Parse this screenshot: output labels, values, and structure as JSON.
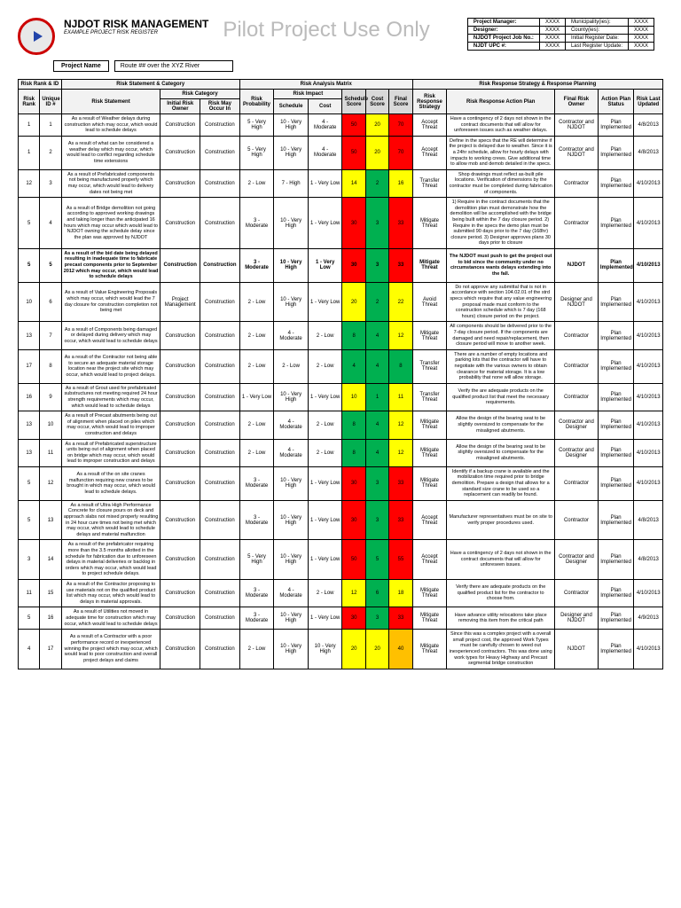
{
  "header": {
    "title": "NJDOT RISK MANAGEMENT",
    "subtitle": "EXAMPLE PROJECT RISK REGISTER",
    "watermark": "Pilot Project Use Only",
    "projectNameLabel": "Project Name",
    "projectNameValue": "Route ## over the XYZ River"
  },
  "meta": [
    [
      "Project Manager:",
      "XXXX",
      "Municipality(ies):",
      "XXXX"
    ],
    [
      "Designer:",
      "XXXX",
      "County(ies):",
      "XXXX"
    ],
    [
      "NJDOT Project Job No.:",
      "XXXX",
      "Initial Register Date:",
      "XXXX"
    ],
    [
      "NJDT UPC #:",
      "XXXX",
      "Last Register Update:",
      "XXXX"
    ]
  ],
  "groupHeaders": {
    "g1": "Risk Rank & ID",
    "g2": "Risk Statement & Category",
    "g3": "Risk Analysis Matrix",
    "g4": "Risk Response Strategy & Response Planning",
    "sub_cat": "Risk Category",
    "sub_impact": "Risk Impact"
  },
  "columns": {
    "riskRank": "Risk Rank",
    "uniqueId": "Unique ID #",
    "riskStatement": "Risk Statement",
    "initialOwner": "Initial Risk Owner",
    "mayOccur": "Risk May Occur In",
    "probability": "Risk Probability",
    "schedule": "Schedule",
    "cost": "Cost",
    "schedScore": "Schedule Score",
    "costScore": "Cost Score",
    "finalScore": "Final Score",
    "strategy": "Risk Response Strategy",
    "actionPlan": "Risk Response Action Plan",
    "finalOwner": "Final Risk Owner",
    "planStatus": "Action Plan Status",
    "lastUpdated": "Risk Last Updated"
  },
  "colors": {
    "red": "#ff0000",
    "yellow": "#ffff00",
    "green": "#00b050",
    "orange": "#ffc000"
  },
  "rows": [
    {
      "rank": "1",
      "id": "1",
      "stmt": "As a result of Weather delays during construction which may occur, which would lead to schedule delays",
      "owner": "Construction",
      "occur": "Construction",
      "prob": "5 - Very High",
      "sched": "10 - Very High",
      "cost": "4 - Moderate",
      "ss": "50",
      "ssC": "red",
      "cs": "20",
      "csC": "yellow",
      "fs": "70",
      "fsC": "red",
      "strat": "Accept Threat",
      "action": "Have a contingency of 2 days not shown in the contract documents that will allow for unforeseen issues such as weather delays.",
      "fowner": "Contractor and NJDOT",
      "status": "Plan Implemented",
      "date": "4/8/2013"
    },
    {
      "rank": "1",
      "id": "2",
      "stmt": "As a result of what can be considered a weather delay which may occur, which would lead to conflict regarding schedule time extensions",
      "owner": "Construction",
      "occur": "Construction",
      "prob": "5 - Very High",
      "sched": "10 - Very High",
      "cost": "4 - Moderate",
      "ss": "50",
      "ssC": "red",
      "cs": "20",
      "csC": "yellow",
      "fs": "70",
      "fsC": "red",
      "strat": "Accept Threat",
      "action": "Define in the specs that the RE will determine if the project is delayed due to weather. Since it is a 24hr schedule, allow for hourly delays with impacts to working crews. Give additional time to allow mob and demob detailed in the specs.",
      "fowner": "Contractor and NJDOT",
      "status": "Plan Implemented",
      "date": "4/8/2013"
    },
    {
      "rank": "12",
      "id": "3",
      "stmt": "As a result of Prefabricated components not being manufactured properly which may occur, which would lead to delivery dates not being met",
      "owner": "Construction",
      "occur": "Construction",
      "prob": "2 - Low",
      "sched": "7 - High",
      "cost": "1 - Very Low",
      "ss": "14",
      "ssC": "yellow",
      "cs": "2",
      "csC": "green",
      "fs": "16",
      "fsC": "yellow",
      "strat": "Transfer Threat",
      "action": "Shop drawings must reflect as-built pile locations. Verification of dimensions by the contractor must be completed during fabrication of components.",
      "fowner": "Contractor",
      "status": "Plan Implemented",
      "date": "4/10/2013"
    },
    {
      "rank": "5",
      "id": "4",
      "stmt": "As a result of Bridge demolition not going according to approved working drawings and taking longer than the anticipated 16 hours which may occur which would lead to NJDOT owning the schedule delay since the plan was approved by NJDOT",
      "owner": "Construction",
      "occur": "Construction",
      "prob": "3 - Moderate",
      "sched": "10 - Very High",
      "cost": "1 - Very Low",
      "ss": "30",
      "ssC": "red",
      "cs": "3",
      "csC": "green",
      "fs": "33",
      "fsC": "red",
      "strat": "Mitigate Threat",
      "action": "1) Require in the contract documents that the demolition plan must demonstrate how the demolition will be accomplished with the bridge being built within the 7 day closure period. 2) Require in the specs the demo plan must be submitted 90 days prior to the 7 day (168hr) closure period. 3) Designer approves plans 30 days prior to closure",
      "fowner": "Contractor",
      "status": "Plan Implemented",
      "date": "4/10/2013"
    },
    {
      "rank": "5",
      "id": "5",
      "bold": true,
      "stmt": "As a result of the bid date being delayed resulting in inadequate time to fabricate precast components prior to September 2012 which may occur, which would lead to schedule delays",
      "owner": "Construction",
      "occur": "Construction",
      "prob": "3 - Moderate",
      "sched": "10 - Very High",
      "cost": "1 - Very Low",
      "ss": "30",
      "ssC": "red",
      "cs": "3",
      "csC": "green",
      "fs": "33",
      "fsC": "red",
      "strat": "Mitigate Threat",
      "action": "The NJDOT must push to get the project out to bid since the community under no circumstances wants delays extending into the fall.",
      "fowner": "NJDOT",
      "status": "Plan Implemented",
      "date": "4/10/2013"
    },
    {
      "rank": "10",
      "id": "6",
      "stmt": "As a result of Value Engineering Proposals which may occur, which would lead the 7 day closure for construction completion not being met",
      "owner": "Project Management",
      "occur": "Construction",
      "prob": "2 - Low",
      "sched": "10 - Very High",
      "cost": "1 - Very Low",
      "ss": "20",
      "ssC": "yellow",
      "cs": "2",
      "csC": "green",
      "fs": "22",
      "fsC": "yellow",
      "strat": "Avoid Threat",
      "action": "Do not approve any submittal that is not in accordance with section 104.02.01 of the strd specs which require that any value engineering proposal made must conform to the construction schedule which is 7 day (168 hours) closure period on the project.",
      "fowner": "Designer and NJDOT",
      "status": "Plan Implemented",
      "date": "4/10/2013"
    },
    {
      "rank": "13",
      "id": "7",
      "stmt": "As a result of Components being damaged or delayed during delivery which may occur, which would lead to schedule delays",
      "owner": "Construction",
      "occur": "Construction",
      "prob": "2 - Low",
      "sched": "4 - Moderate",
      "cost": "2 - Low",
      "ss": "8",
      "ssC": "green",
      "cs": "4",
      "csC": "green",
      "fs": "12",
      "fsC": "yellow",
      "strat": "Mitigate Threat",
      "action": "All components should be delivered prior to the 7-day closure period. If the components are damaged and need repair/replacement, then closure period will move to another week.",
      "fowner": "Contractor",
      "status": "Plan Implemented",
      "date": "4/10/2013"
    },
    {
      "rank": "17",
      "id": "8",
      "stmt": "As a result of the Contractor not being able to secure an adequate material storage location near the project site which may occur, which would lead to project delays.",
      "owner": "Construction",
      "occur": "Construction",
      "prob": "2 - Low",
      "sched": "2 - Low",
      "cost": "2 - Low",
      "ss": "4",
      "ssC": "green",
      "cs": "4",
      "csC": "green",
      "fs": "8",
      "fsC": "green",
      "strat": "Transfer Threat",
      "action": "There are a number of empty locations and parking lots that the contractor will have to negotiate with the various owners to obtain clearance for material storage. It is a low probability that none will allow storage.",
      "fowner": "Contractor",
      "status": "Plan Implemented",
      "date": "4/10/2013"
    },
    {
      "rank": "16",
      "id": "9",
      "stmt": "As a result of Grout used for prefabricated substructures not meeting required 24 hour strength requirements which may occur, which would lead to schedule delays",
      "owner": "Construction",
      "occur": "Construction",
      "prob": "1 - Very Low",
      "sched": "10 - Very High",
      "cost": "1 - Very Low",
      "ss": "10",
      "ssC": "yellow",
      "cs": "1",
      "csC": "green",
      "fs": "11",
      "fsC": "yellow",
      "strat": "Transfer Threat",
      "action": "Verify the are adequate products on the qualified product list that meet the necessary requirements.",
      "fowner": "Contractor",
      "status": "Plan Implemented",
      "date": "4/10/2013"
    },
    {
      "rank": "13",
      "id": "10",
      "stmt": "As a result of Precast abutments being out of alignment when placed on piles which may occur, which would lead to improper construction and delays",
      "owner": "Construction",
      "occur": "Construction",
      "prob": "2 - Low",
      "sched": "4 - Moderate",
      "cost": "2 - Low",
      "ss": "8",
      "ssC": "green",
      "cs": "4",
      "csC": "green",
      "fs": "12",
      "fsC": "yellow",
      "strat": "Mitigate Threat",
      "action": "Allow the design of the bearing seat to be slightly oversized to compensate for the misaligned abutments.",
      "fowner": "Contractor and Designer",
      "status": "Plan Implemented",
      "date": "4/10/2013"
    },
    {
      "rank": "13",
      "id": "11",
      "stmt": "As a result of Prefabricated superstructure units being out of alignment when placed on bridge which may occur, which would lead to improper construction and delays",
      "owner": "Construction",
      "occur": "Construction",
      "prob": "2 - Low",
      "sched": "4 - Moderate",
      "cost": "2 - Low",
      "ss": "8",
      "ssC": "green",
      "cs": "4",
      "csC": "green",
      "fs": "12",
      "fsC": "yellow",
      "strat": "Mitigate Threat",
      "action": "Allow the design of the bearing seat to be slightly oversized to compensate for the misaligned abutments.",
      "fowner": "Contractor and Designer",
      "status": "Plan Implemented",
      "date": "4/10/2013"
    },
    {
      "rank": "5",
      "id": "12",
      "stmt": "As a result of the on site cranes malfunction requiring new cranes to be brought in which may occur, which would lead to schedule delays.",
      "owner": "Construction",
      "occur": "Construction",
      "prob": "3 - Moderate",
      "sched": "10 - Very High",
      "cost": "1 - Very Low",
      "ss": "30",
      "ssC": "red",
      "cs": "3",
      "csC": "green",
      "fs": "33",
      "fsC": "red",
      "strat": "Mitigate Threat",
      "action": "Identify if a backup crane is available and the mobilization time required prior to bridge demolition. Prepare a design that allows for a standard size crane to be used so a replacement can readily be found.",
      "fowner": "Contractor",
      "status": "Plan Implemented",
      "date": "4/10/2013"
    },
    {
      "rank": "5",
      "id": "13",
      "stmt": "As a result of Ultra High Performance Concrete for closure pours on deck and approach slabs not mixed properly resulting in 24 hour cure times not being met which may occur, which would lead to schedule delays and material malfunction",
      "owner": "Construction",
      "occur": "Construction",
      "prob": "3 - Moderate",
      "sched": "10 - Very High",
      "cost": "1 - Very Low",
      "ss": "30",
      "ssC": "red",
      "cs": "3",
      "csC": "green",
      "fs": "33",
      "fsC": "red",
      "strat": "Accept Threat",
      "action": "Manufacturer representatives must be on site to verify proper procedures used.",
      "fowner": "Contractor",
      "status": "Plan Implemented",
      "date": "4/8/2013"
    },
    {
      "rank": "3",
      "id": "14",
      "stmt": "As a result of the prefabricator requiring more than the 3.5 months allotted in the schedule for fabrication due to unforeseen delays in material deliveries or backlog in orders which may occur, which would lead to project schedule delays.",
      "owner": "Construction",
      "occur": "Construction",
      "prob": "5 - Very High",
      "sched": "10 - Very High",
      "cost": "1 - Very Low",
      "ss": "50",
      "ssC": "red",
      "cs": "5",
      "csC": "green",
      "fs": "55",
      "fsC": "red",
      "strat": "Accept Threat",
      "action": "Have a contingency of 2 days not shown in the contract documents that will allow for unforeseen issues.",
      "fowner": "Contractor and Designer",
      "status": "Plan Implemented",
      "date": "4/8/2013"
    },
    {
      "rank": "11",
      "id": "15",
      "stmt": "As a result of the Contractor proposing to use materials not on the qualified product list which may occur, which would lead to delays in material approvals.",
      "owner": "Construction",
      "occur": "Construction",
      "prob": "3 - Moderate",
      "sched": "4 - Moderate",
      "cost": "2 - Low",
      "ss": "12",
      "ssC": "yellow",
      "cs": "6",
      "csC": "green",
      "fs": "18",
      "fsC": "yellow",
      "strat": "Mitigate Threat",
      "action": "Verify there are adequate products on the qualified product list for the contractor to choose from.",
      "fowner": "Contractor",
      "status": "Plan Implemented",
      "date": "4/10/2013"
    },
    {
      "rank": "5",
      "id": "16",
      "stmt": "As a result of Utilities not moved in adequate time for construction which may occur, which would lead to schedule delays",
      "owner": "Construction",
      "occur": "Construction",
      "prob": "3 - Moderate",
      "sched": "10 - Very High",
      "cost": "1 - Very Low",
      "ss": "30",
      "ssC": "red",
      "cs": "3",
      "csC": "green",
      "fs": "33",
      "fsC": "red",
      "strat": "Mitigate Threat",
      "action": "Have advance utility relocations take place removing this item from the critical path",
      "fowner": "Designer and NJDOT",
      "status": "Plan Implemented",
      "date": "4/9/2013"
    },
    {
      "rank": "4",
      "id": "17",
      "stmt": "As a result of a Contractor with a poor performance record or inexperienced winning the project which may occur, which would lead to poor construction and overall project delays and claims",
      "owner": "Construction",
      "occur": "Construction",
      "prob": "2 - Low",
      "sched": "10 - Very High",
      "cost": "10 - Very High",
      "ss": "20",
      "ssC": "yellow",
      "cs": "20",
      "csC": "yellow",
      "fs": "40",
      "fsC": "orange",
      "strat": "Mitigate Threat",
      "action": "Since this was a complex project with a overall small project cost, the approved Work Types must be carefully chosen to weed out inexperienced contractors. This was done using work types for Heavy Highway and Precast segmental bridge construction",
      "fowner": "NJDOT",
      "status": "Plan Implemented",
      "date": "4/10/2013"
    }
  ]
}
